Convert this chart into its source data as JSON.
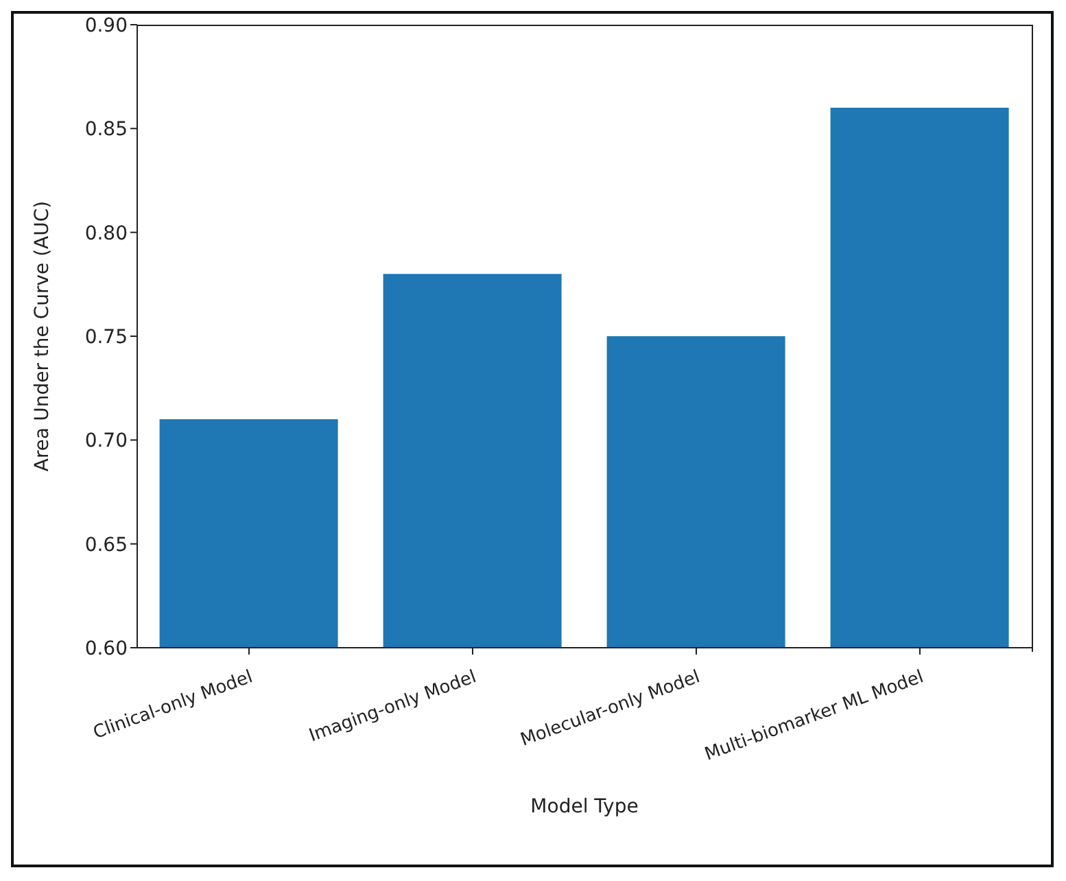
{
  "chart_data": {
    "type": "bar",
    "xlabel": "Model Type",
    "ylabel": "Area Under the Curve (AUC)",
    "categories": [
      "Clinical-only Model",
      "Imaging-only Model",
      "Molecular-only Model",
      "Multi-biomarker ML Model"
    ],
    "values": [
      0.71,
      0.78,
      0.75,
      0.86
    ],
    "color": "#1f77b4",
    "ylim": [
      0.6,
      0.9
    ],
    "yticks": [
      {
        "value": 0.6,
        "label": "0.60"
      },
      {
        "value": 0.65,
        "label": "0.65"
      },
      {
        "value": 0.7,
        "label": "0.70"
      },
      {
        "value": 0.75,
        "label": "0.75"
      },
      {
        "value": 0.8,
        "label": "0.80"
      },
      {
        "value": 0.85,
        "label": "0.85"
      },
      {
        "value": 0.9,
        "label": "0.90"
      }
    ],
    "grid": false
  }
}
